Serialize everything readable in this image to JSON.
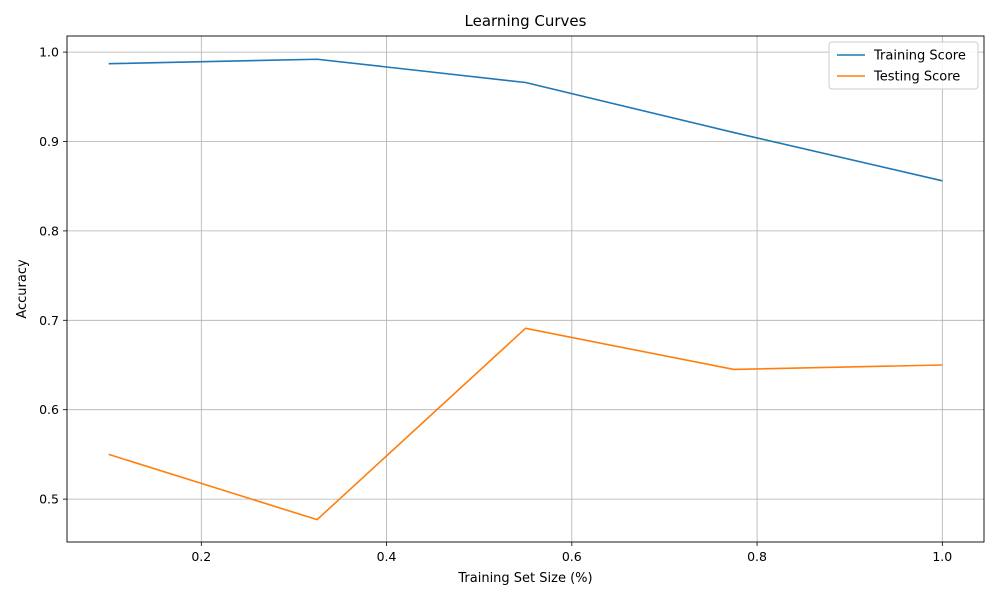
{
  "chart_data": {
    "type": "line",
    "title": "Learning Curves",
    "xlabel": "Training Set Size (%)",
    "ylabel": "Accuracy",
    "xlim": [
      0.055,
      1.045
    ],
    "ylim": [
      0.452,
      1.018
    ],
    "xticks": [
      0.2,
      0.4,
      0.6,
      0.8,
      1.0
    ],
    "xtick_labels": [
      "0.2",
      "0.4",
      "0.6",
      "0.8",
      "1.0"
    ],
    "yticks": [
      0.5,
      0.6,
      0.7,
      0.8,
      0.9,
      1.0
    ],
    "ytick_labels": [
      "0.5",
      "0.6",
      "0.7",
      "0.8",
      "0.9",
      "1.0"
    ],
    "grid": true,
    "legend_position": "top-right",
    "x": [
      0.1,
      0.325,
      0.55,
      0.775,
      1.0
    ],
    "series": [
      {
        "name": "Training Score",
        "color": "#1f77b4",
        "values": [
          0.987,
          0.992,
          0.966,
          0.91,
          0.856
        ]
      },
      {
        "name": "Testing Score",
        "color": "#ff7f0e",
        "values": [
          0.55,
          0.477,
          0.691,
          0.645,
          0.65
        ]
      }
    ]
  }
}
